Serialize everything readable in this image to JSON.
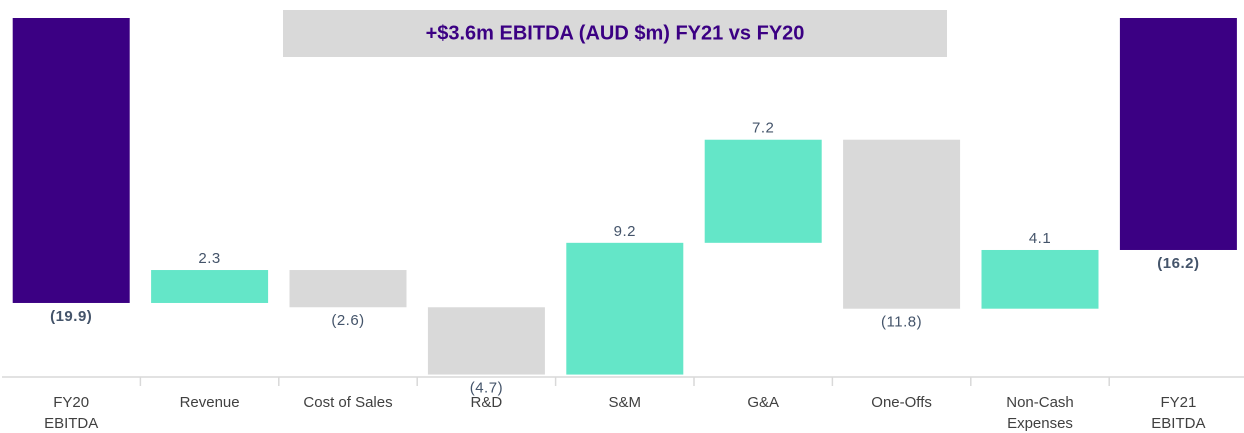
{
  "chart_data": {
    "type": "waterfall",
    "title": "+$3.6m EBITDA (AUD $m) FY21 vs FY20",
    "categories": [
      "FY20\nEBITDA",
      "Revenue",
      "Cost of Sales",
      "R&D",
      "S&M",
      "G&A",
      "One-Offs",
      "Non-Cash\nExpenses",
      "FY21\nEBITDA"
    ],
    "values": [
      -19.9,
      2.3,
      -2.6,
      -4.7,
      9.2,
      7.2,
      -11.8,
      4.1,
      -16.2
    ],
    "value_labels": [
      "(19.9)",
      "2.3",
      "(2.6)",
      "(4.7)",
      "9.2",
      "7.2",
      "(11.8)",
      "4.1",
      "(16.2)"
    ],
    "totals": [
      0,
      8
    ],
    "colors": {
      "total": "#3b0083",
      "increase": "#64e6c8",
      "decrease": "#d9d9d9"
    },
    "ylim": [
      -25,
      0
    ]
  }
}
